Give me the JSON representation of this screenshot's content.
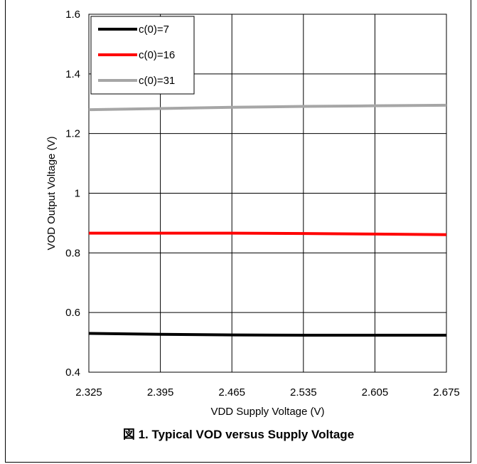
{
  "figure_caption": "図 1. Typical VOD versus Supply Voltage",
  "chart_data": {
    "type": "line",
    "xlabel": "VDD Supply Voltage (V)",
    "ylabel": "VOD Output Voltage (V)",
    "xlim": [
      2.325,
      2.675
    ],
    "ylim": [
      0.4,
      1.6
    ],
    "x_ticks": [
      "2.325",
      "2.395",
      "2.465",
      "2.535",
      "2.605",
      "2.675"
    ],
    "y_ticks": [
      "0.4",
      "0.6",
      "0.8",
      "1",
      "1.2",
      "1.4",
      "1.6"
    ],
    "grid": true,
    "legend_position": "top-left",
    "x": [
      2.325,
      2.395,
      2.465,
      2.535,
      2.605,
      2.675
    ],
    "series": [
      {
        "name": "c(0)=7",
        "color": "#000000",
        "values": [
          0.53,
          0.527,
          0.525,
          0.524,
          0.524,
          0.524
        ]
      },
      {
        "name": "c(0)=16",
        "color": "#ff0000",
        "values": [
          0.866,
          0.866,
          0.866,
          0.865,
          0.863,
          0.861
        ]
      },
      {
        "name": "c(0)=31",
        "color": "#a6a6a6",
        "values": [
          1.28,
          1.284,
          1.288,
          1.291,
          1.293,
          1.295
        ]
      }
    ]
  }
}
